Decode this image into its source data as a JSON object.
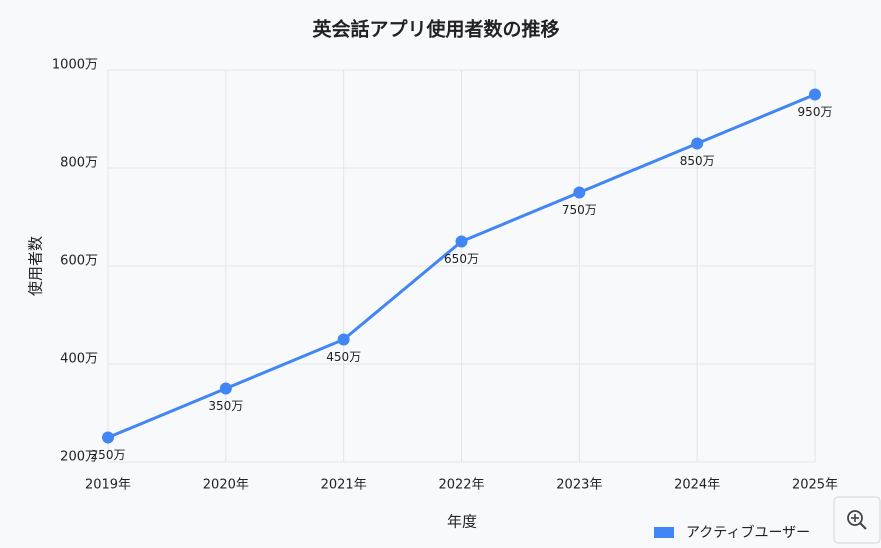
{
  "chart_data": {
    "type": "line",
    "title": "英会話アプリ使用者数の推移",
    "x_label": "年度",
    "y_label": "使用者数",
    "categories": [
      "2019年",
      "2020年",
      "2021年",
      "2022年",
      "2023年",
      "2024年",
      "2025年"
    ],
    "series": [
      {
        "name": "アクティブユーザー",
        "color": "#4285f4",
        "values": [
          250,
          350,
          450,
          650,
          750,
          850,
          950
        ],
        "value_labels": [
          "250万",
          "350万",
          "450万",
          "650万",
          "750万",
          "850万",
          "950万"
        ]
      }
    ],
    "ylim": [
      200,
      1000
    ],
    "yticks": [
      {
        "value": 200,
        "label": "200万"
      },
      {
        "value": 400,
        "label": "400万"
      },
      {
        "value": 600,
        "label": "600万"
      },
      {
        "value": 800,
        "label": "800万"
      },
      {
        "value": 1000,
        "label": "1000万"
      }
    ],
    "grid": true,
    "legend": "bottom-right"
  }
}
